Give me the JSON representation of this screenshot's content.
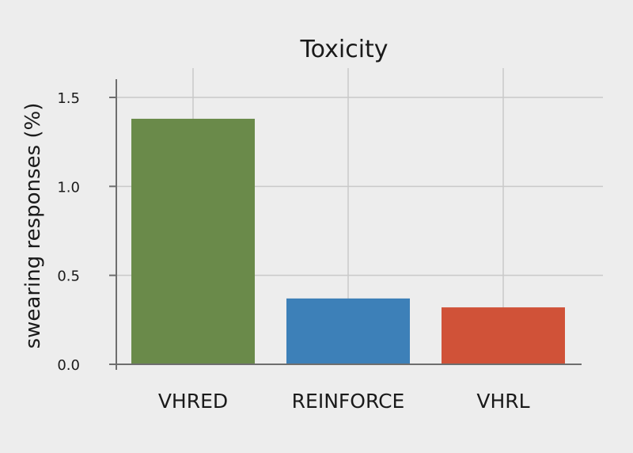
{
  "chart_data": {
    "type": "bar",
    "title": "Toxicity",
    "xlabel": "",
    "ylabel": "swearing responses (%)",
    "categories": [
      "VHRED",
      "REINFORCE",
      "VHRL"
    ],
    "values": [
      1.38,
      0.37,
      0.32
    ],
    "colors": [
      "#6a8a4a",
      "#3d80b8",
      "#d05238"
    ],
    "ylim": [
      0,
      1.5
    ],
    "yticks": [
      0.0,
      0.5,
      1.0,
      1.5
    ],
    "ytick_labels": [
      "0.0",
      "0.5",
      "1.0",
      "1.5"
    ],
    "grid": true,
    "legend": "none"
  }
}
